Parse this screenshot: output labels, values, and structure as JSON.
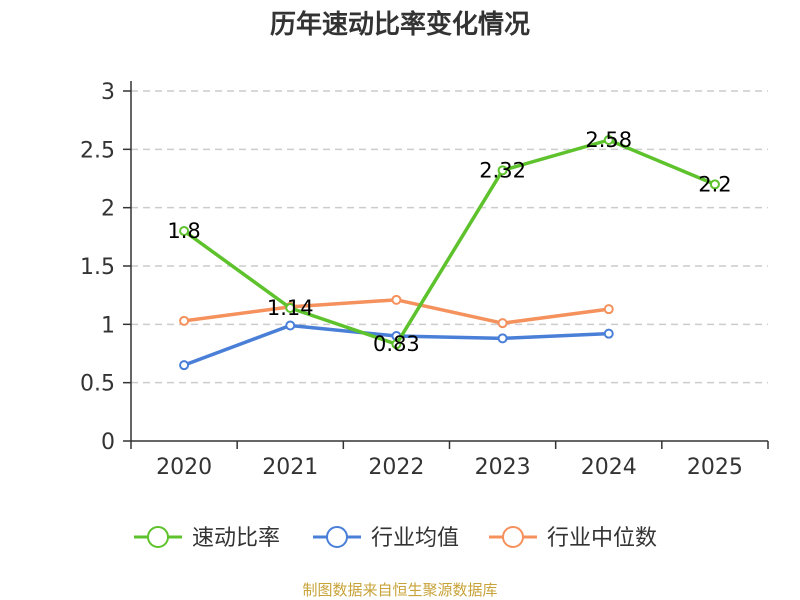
{
  "chart_data": {
    "type": "line",
    "title": "历年速动比率变化情况",
    "categories": [
      "2020",
      "2021",
      "2022",
      "2023",
      "2024",
      "2025"
    ],
    "ylim": [
      0,
      3
    ],
    "yticks": [
      "0",
      "0.5",
      "1",
      "1.5",
      "2",
      "2.5",
      "3"
    ],
    "grid": true,
    "legend_position": "bottom",
    "series": [
      {
        "name": "速动比率",
        "color": "#5dc22c",
        "values": [
          1.8,
          1.14,
          0.83,
          2.32,
          2.58,
          2.2
        ],
        "labels": [
          "1.8",
          "1.14",
          "0.83",
          "2.32",
          "2.58",
          "2.2"
        ]
      },
      {
        "name": "行业均值",
        "color": "#4a7fd8",
        "values": [
          0.65,
          0.99,
          0.9,
          0.88,
          0.92,
          null
        ]
      },
      {
        "name": "行业中位数",
        "color": "#f5915c",
        "values": [
          1.03,
          1.15,
          1.21,
          1.01,
          1.13,
          null
        ]
      }
    ],
    "source": "制图数据来自恒生聚源数据库"
  }
}
